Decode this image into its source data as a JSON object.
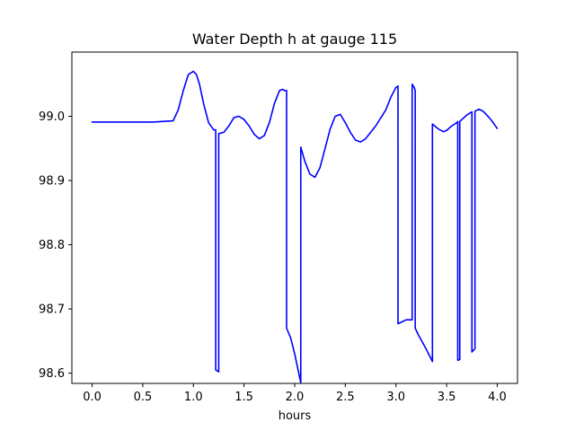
{
  "chart_data": {
    "type": "line",
    "title": "Water Depth h at gauge 115",
    "xlabel": "hours",
    "ylabel": "",
    "xlim": [
      -0.2,
      4.2
    ],
    "ylim": [
      98.584,
      99.1
    ],
    "grid": false,
    "legend": "none",
    "x_ticks": [
      0.0,
      0.5,
      1.0,
      1.5,
      2.0,
      2.5,
      3.0,
      3.5,
      4.0
    ],
    "x_tick_labels": [
      "0.0",
      "0.5",
      "1.0",
      "1.5",
      "2.0",
      "2.5",
      "3.0",
      "3.5",
      "4.0"
    ],
    "y_ticks": [
      98.6,
      98.7,
      98.8,
      98.9,
      99.0
    ],
    "y_tick_labels": [
      "98.6",
      "98.7",
      "98.8",
      "98.9",
      "99.0"
    ],
    "colors": {
      "line": "#0000ff",
      "axes": "#000000",
      "background": "#ffffff"
    },
    "series": [
      {
        "x": [
          0.0,
          0.2,
          0.4,
          0.6,
          0.8,
          0.85,
          0.9,
          0.95,
          1.0,
          1.03,
          1.06,
          1.1,
          1.15,
          1.2,
          1.22,
          1.22,
          1.25,
          1.25,
          1.3,
          1.35,
          1.4,
          1.45,
          1.5,
          1.55,
          1.6,
          1.65,
          1.7,
          1.75,
          1.8,
          1.85,
          1.88,
          1.9,
          1.92,
          1.92,
          1.96,
          2.0,
          2.04,
          2.06,
          2.06,
          2.1,
          2.15,
          2.2,
          2.25,
          2.3,
          2.35,
          2.4,
          2.45,
          2.5,
          2.55,
          2.6,
          2.65,
          2.7,
          2.8,
          2.9,
          2.95,
          3.0,
          3.02,
          3.02,
          3.06,
          3.1,
          3.15,
          3.16,
          3.16,
          3.18,
          3.19,
          3.19,
          3.22,
          3.3,
          3.36,
          3.36,
          3.42,
          3.47,
          3.5,
          3.55,
          3.6,
          3.61,
          3.61,
          3.63,
          3.63,
          3.7,
          3.75,
          3.75,
          3.78,
          3.78,
          3.82,
          3.86,
          3.92,
          3.96,
          4.0
        ],
        "y": [
          98.991,
          98.991,
          98.991,
          98.991,
          98.993,
          99.01,
          99.04,
          99.065,
          99.07,
          99.065,
          99.05,
          99.02,
          98.99,
          98.979,
          98.979,
          98.605,
          98.602,
          98.973,
          98.975,
          98.985,
          98.998,
          99.0,
          98.995,
          98.985,
          98.972,
          98.965,
          98.97,
          98.99,
          99.02,
          99.04,
          99.042,
          99.04,
          99.04,
          98.67,
          98.655,
          98.63,
          98.6,
          98.585,
          98.952,
          98.93,
          98.91,
          98.905,
          98.92,
          98.95,
          98.98,
          99.0,
          99.003,
          98.99,
          98.975,
          98.963,
          98.96,
          98.965,
          98.985,
          99.01,
          99.03,
          99.045,
          99.047,
          98.677,
          98.68,
          98.683,
          98.683,
          98.683,
          99.05,
          99.045,
          99.04,
          98.67,
          98.66,
          98.637,
          98.618,
          98.988,
          98.98,
          98.976,
          98.978,
          98.985,
          98.99,
          98.992,
          98.62,
          98.621,
          98.992,
          99.002,
          99.007,
          98.633,
          98.638,
          99.008,
          99.011,
          99.008,
          98.998,
          98.99,
          98.981
        ]
      }
    ]
  }
}
